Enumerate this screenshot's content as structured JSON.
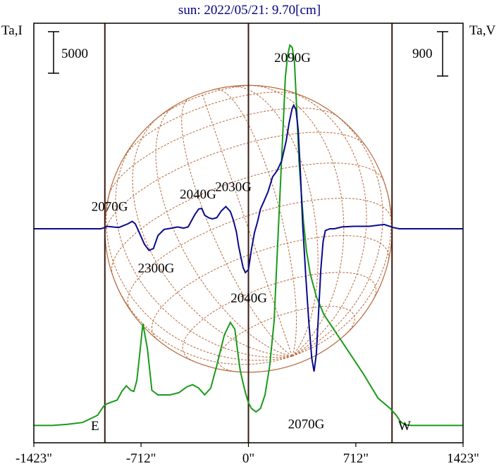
{
  "chart_data": {
    "type": "line",
    "title": "sun: 2022/05/21: 9.70[cm]",
    "ylabel_left": "Ta,I",
    "ylabel_right": "Ta,V",
    "scale_left_label": "5000",
    "scale_right_label": "900",
    "xlim": [
      -1423,
      1423
    ],
    "x_ticks": [
      {
        "value": -1423,
        "label": "-1423\""
      },
      {
        "value": -712,
        "label": "-712\""
      },
      {
        "value": 0,
        "label": "0\""
      },
      {
        "value": 712,
        "label": "712\""
      },
      {
        "value": 1423,
        "label": "1423\""
      }
    ],
    "vertical_lines": [
      -952,
      0,
      952
    ],
    "limb_labels": {
      "east": "E",
      "west": "W"
    },
    "sun_disk": {
      "center": [
        0,
        0
      ],
      "radius": 952
    },
    "colors": {
      "intensity": "#1a9a1a",
      "polarization": "#0a0a8c",
      "grid": "#b8683a",
      "frame": "#000000",
      "vline": "#3a1a12",
      "title": "#000080"
    },
    "series": [
      {
        "key": "I",
        "x": [
          -1423,
          -1300,
          -1200,
          -1100,
          -1000,
          -960,
          -940,
          -900,
          -870,
          -840,
          -810,
          -780,
          -760,
          -740,
          -720,
          -700,
          -670,
          -640,
          -600,
          -560,
          -520,
          -460,
          -410,
          -370,
          -330,
          -290,
          -250,
          -210,
          -160,
          -120,
          -90,
          -70,
          -55,
          -40,
          -20,
          0,
          20,
          50,
          80,
          110,
          140,
          170,
          200,
          230,
          245,
          260,
          275,
          290,
          305,
          320,
          335,
          350,
          365,
          385,
          410,
          450,
          500,
          560,
          650,
          760,
          860,
          940,
          980,
          1010,
          1040,
          1080,
          1200,
          1423
        ],
        "y": [
          300,
          300,
          350,
          430,
          750,
          1150,
          1250,
          1350,
          1420,
          1800,
          2050,
          1850,
          1800,
          2300,
          3500,
          4800,
          3700,
          1850,
          1650,
          1650,
          1650,
          1750,
          2000,
          2100,
          1950,
          1650,
          1950,
          2950,
          4300,
          4850,
          4550,
          3500,
          2750,
          2300,
          1750,
          1300,
          1050,
          900,
          1050,
          1650,
          2900,
          4900,
          9200,
          13500,
          15700,
          16650,
          17100,
          17000,
          16350,
          14300,
          12000,
          10600,
          9300,
          8000,
          7000,
          6000,
          5200,
          4600,
          3700,
          2600,
          1500,
          1050,
          750,
          450,
          330,
          300,
          300,
          300
        ]
      },
      {
        "key": "V",
        "x": [
          -1423,
          -1100,
          -980,
          -950,
          -940,
          -900,
          -860,
          -800,
          -770,
          -750,
          -735,
          -715,
          -690,
          -660,
          -630,
          -600,
          -560,
          -510,
          -470,
          -430,
          -400,
          -380,
          -355,
          -330,
          -310,
          -290,
          -265,
          -240,
          -210,
          -180,
          -150,
          -120,
          -100,
          -80,
          -65,
          -50,
          -35,
          -20,
          0,
          20,
          40,
          60,
          80,
          100,
          130,
          160,
          190,
          220,
          250,
          270,
          290,
          300,
          315,
          330,
          345,
          360,
          380,
          400,
          420,
          435,
          450,
          465,
          480,
          495,
          510,
          540,
          570,
          620,
          700,
          800,
          900,
          960,
          1000,
          1100,
          1423
        ],
        "y": [
          0,
          0,
          0,
          10,
          20,
          15,
          10,
          40,
          60,
          40,
          0,
          -55,
          -125,
          -175,
          -160,
          -55,
          -5,
          5,
          15,
          5,
          15,
          60,
          115,
          160,
          165,
          110,
          90,
          80,
          90,
          145,
          180,
          140,
          70,
          -25,
          -140,
          -230,
          -315,
          -355,
          -330,
          -165,
          -30,
          55,
          160,
          215,
          300,
          420,
          470,
          550,
          710,
          860,
          975,
          1000,
          965,
          800,
          445,
          30,
          -380,
          -750,
          -1050,
          -1155,
          -1015,
          -680,
          -330,
          -105,
          -15,
          0,
          0,
          15,
          20,
          20,
          35,
          10,
          0,
          0,
          0
        ]
      }
    ],
    "annotations": [
      {
        "text": "2070G",
        "x": -920,
        "y": 180
      },
      {
        "text": "2300G",
        "x": -612,
        "y": -320
      },
      {
        "text": "2040G",
        "x": -334,
        "y": 280
      },
      {
        "text": "2030G",
        "x": -100,
        "y": 340
      },
      {
        "text": "2040G",
        "x": 3,
        "y": -560
      },
      {
        "text": "2090G",
        "x": 292,
        "y": 1385
      },
      {
        "text": "2070G",
        "x": 383,
        "y": -1580
      }
    ]
  }
}
